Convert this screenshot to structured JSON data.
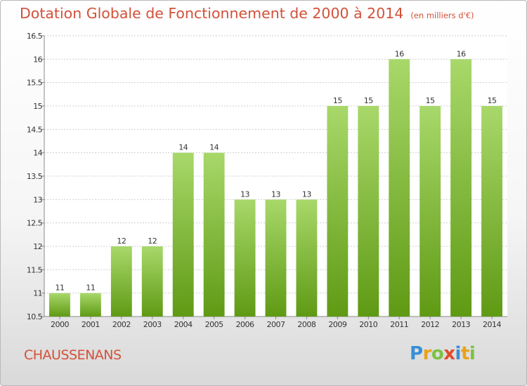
{
  "header": {
    "title": "Dotation Globale de Fonctionnement de 2000 à 2014",
    "unit": "(en milliers d'€)"
  },
  "footer": {
    "commune": "CHAUSSENANS"
  },
  "logo": {
    "letters": [
      "P",
      "r",
      "o",
      "x",
      "i",
      "t",
      "i"
    ],
    "colors": [
      "#3a8fd6",
      "#e9a21b",
      "#7cc242",
      "#e04a2a",
      "#3a8fd6",
      "#e9a21b",
      "#7cc242"
    ]
  },
  "colors": {
    "bar_top": "#a8d86a",
    "bar_bottom": "#5f9a14",
    "title": "#d2513a",
    "grid": "#cfcfcf"
  },
  "chart_data": {
    "type": "bar",
    "categories": [
      "2000",
      "2001",
      "2002",
      "2003",
      "2004",
      "2005",
      "2006",
      "2007",
      "2008",
      "2009",
      "2010",
      "2011",
      "2012",
      "2013",
      "2014"
    ],
    "values": [
      11,
      11,
      12,
      12,
      14,
      14,
      13,
      13,
      13,
      15,
      15,
      16,
      15,
      16,
      15
    ],
    "value_labels": [
      "11",
      "11",
      "12",
      "12",
      "14",
      "14",
      "13",
      "13",
      "13",
      "15",
      "15",
      "16",
      "15",
      "16",
      "15"
    ],
    "yticks": [
      "10.5",
      "11",
      "11.5",
      "12",
      "12.5",
      "13",
      "13.5",
      "14",
      "14.5",
      "15",
      "15.5",
      "16",
      "16.5"
    ],
    "ytick_values": [
      10.5,
      11,
      11.5,
      12,
      12.5,
      13,
      13.5,
      14,
      14.5,
      15,
      15.5,
      16,
      16.5
    ],
    "ylim": [
      10.5,
      16.5
    ],
    "grid": true,
    "title": "Dotation Globale de Fonctionnement de 2000 à 2014",
    "xlabel": "",
    "ylabel": ""
  }
}
